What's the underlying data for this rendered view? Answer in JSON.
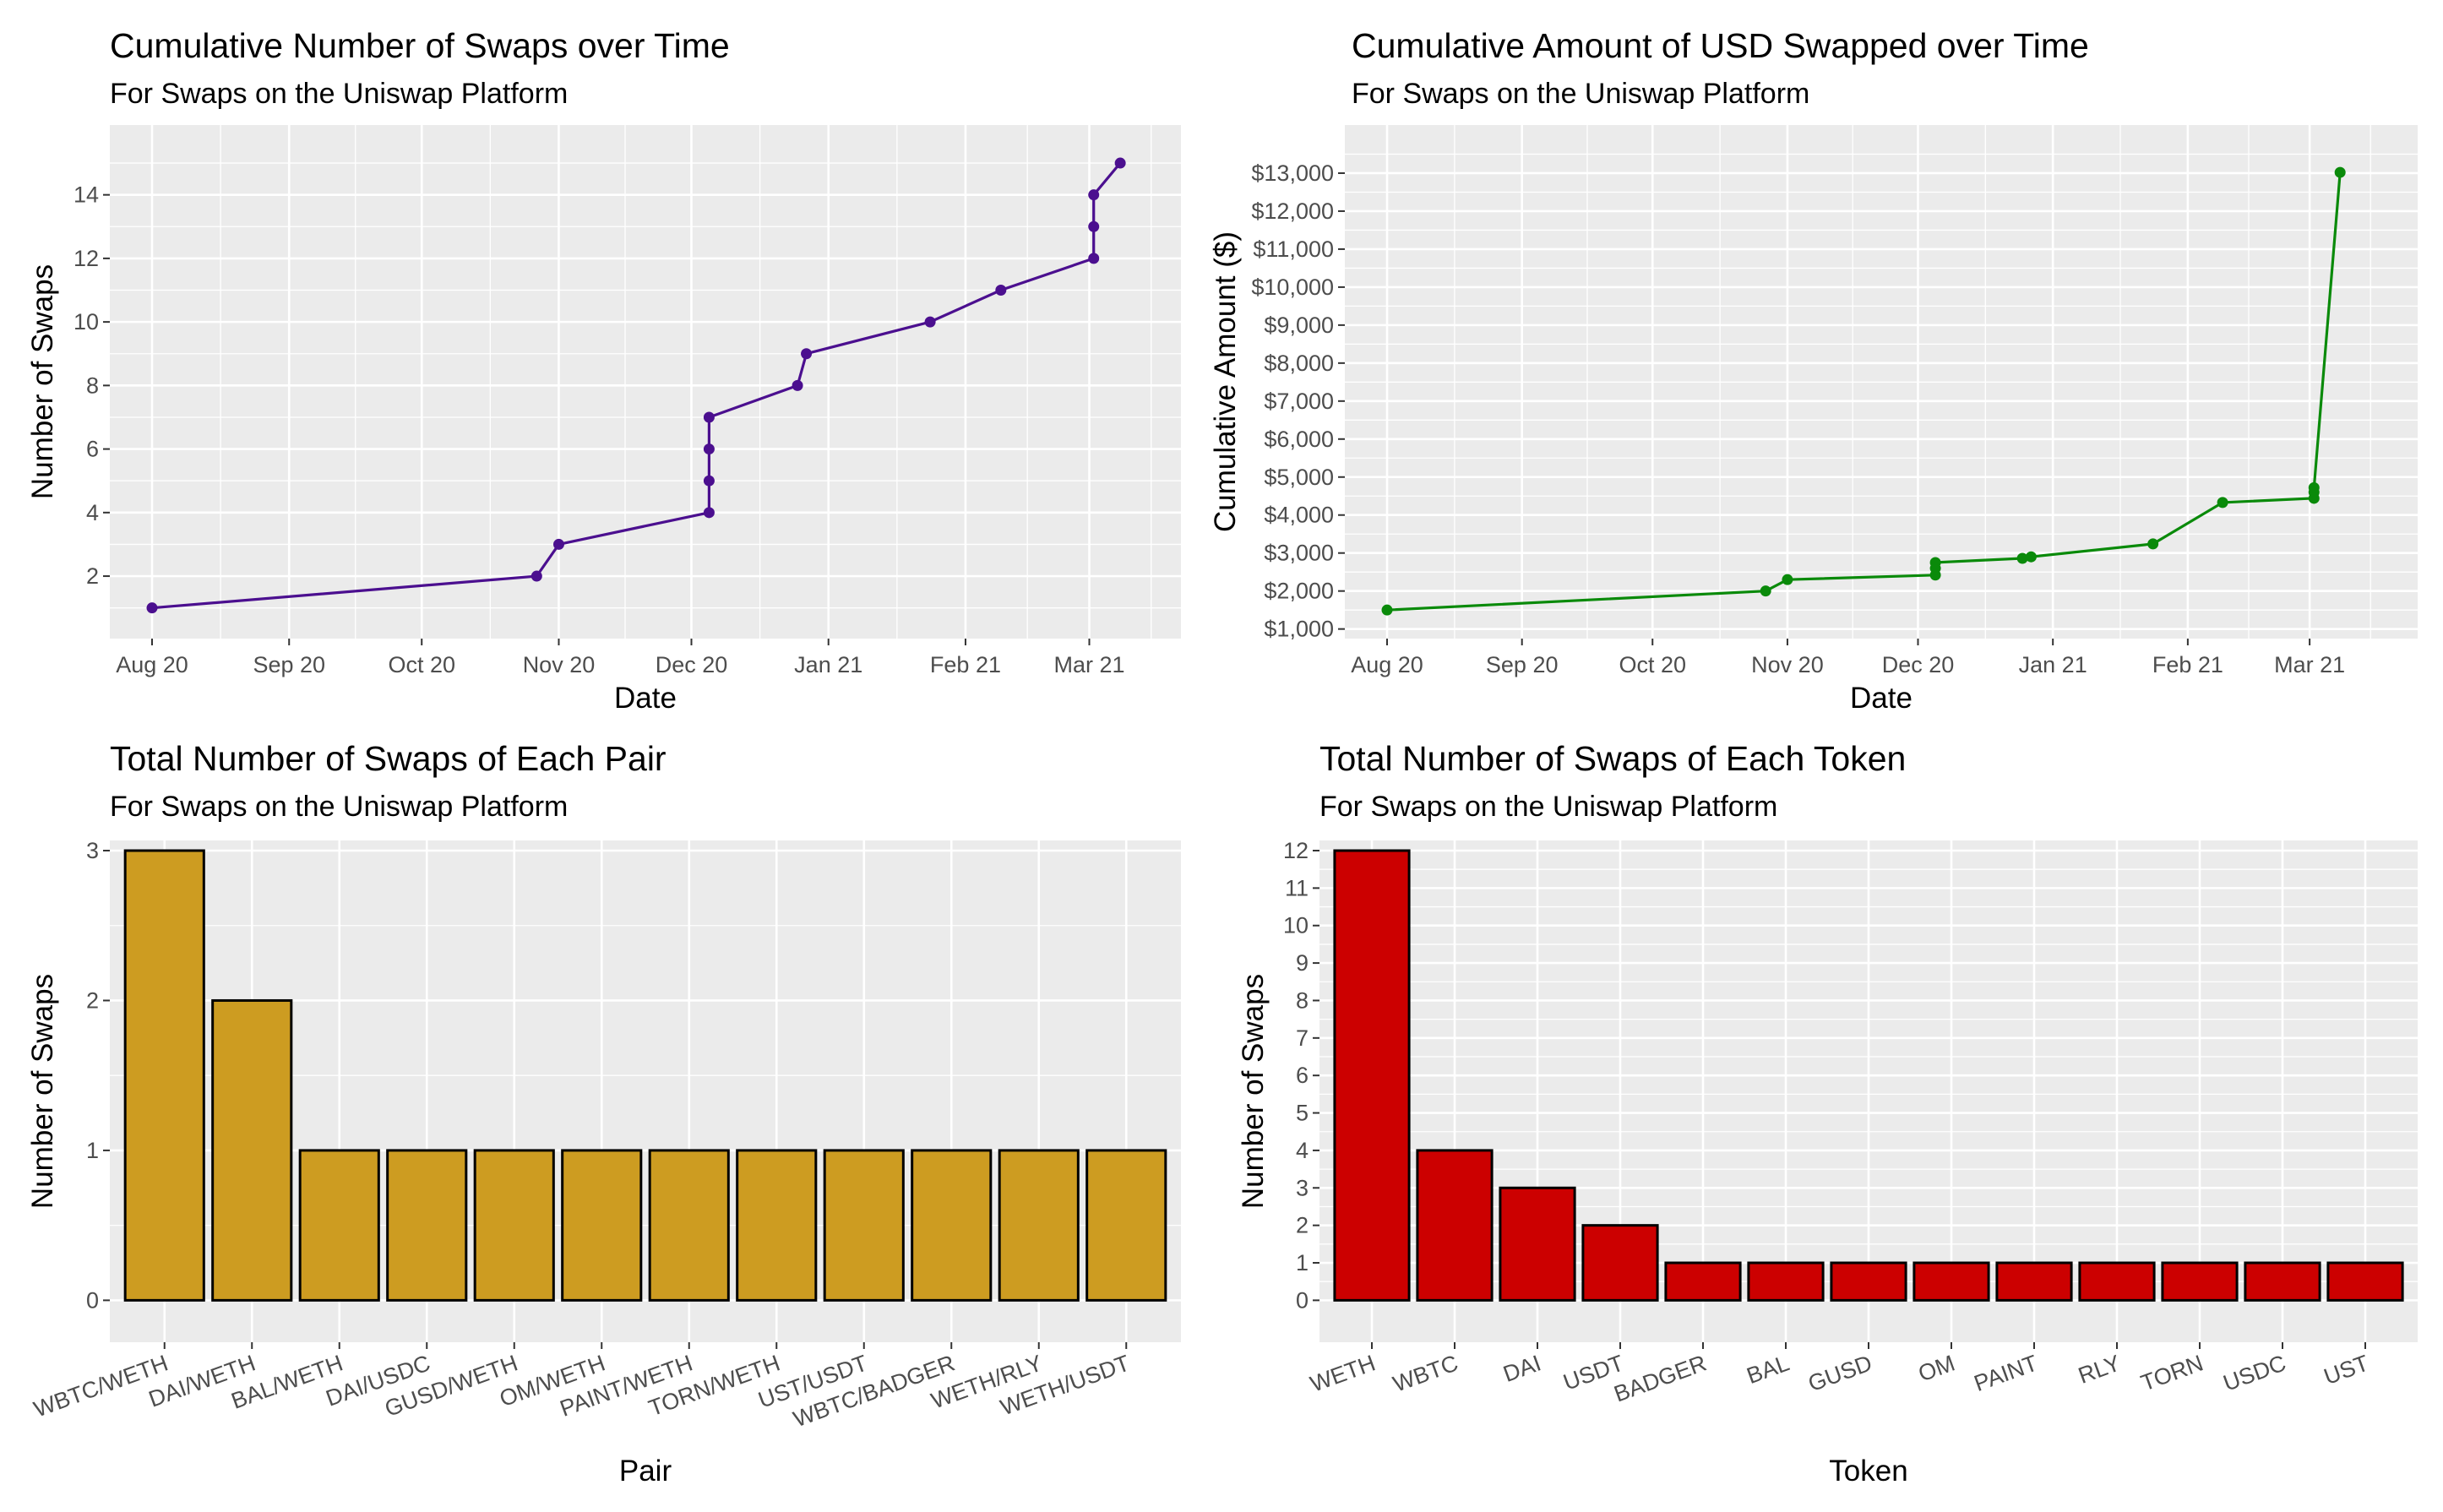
{
  "chart_data": [
    {
      "type": "line",
      "title": "Cumulative Number of Swaps over Time",
      "subtitle": "For Swaps on the Uniswap Platform",
      "xlabel": "Date",
      "ylabel": "Number of Swaps",
      "xlim": [
        "2020-08-01",
        "2021-03-16"
      ],
      "ylim": [
        0.3,
        15.4
      ],
      "x_ticks": [
        {
          "date": "2020-08-01",
          "label": "Aug 20"
        },
        {
          "date": "2020-09-01",
          "label": "Sep 20"
        },
        {
          "date": "2020-10-01",
          "label": "Oct 20"
        },
        {
          "date": "2020-11-01",
          "label": "Nov 20"
        },
        {
          "date": "2020-12-01",
          "label": "Dec 20"
        },
        {
          "date": "2021-01-01",
          "label": "Jan 21"
        },
        {
          "date": "2021-02-01",
          "label": "Feb 21"
        },
        {
          "date": "2021-03-01",
          "label": "Mar 21"
        }
      ],
      "y_ticks": [
        {
          "value": 2,
          "label": "2"
        },
        {
          "value": 4,
          "label": "4"
        },
        {
          "value": 6,
          "label": "6"
        },
        {
          "value": 8,
          "label": "8"
        },
        {
          "value": 10,
          "label": "10"
        },
        {
          "value": 12,
          "label": "12"
        },
        {
          "value": 14,
          "label": "14"
        }
      ],
      "color": "#4b0f8f",
      "grid": true,
      "series": [
        {
          "x": [
            "2020-08-01",
            "2020-10-27",
            "2020-11-01",
            "2020-12-05",
            "2020-12-05",
            "2020-12-05",
            "2020-12-05",
            "2020-12-25",
            "2020-12-27",
            "2021-01-24",
            "2021-02-09",
            "2021-03-02",
            "2021-03-02",
            "2021-03-02",
            "2021-03-08"
          ],
          "y": [
            1,
            2,
            3,
            4,
            5,
            6,
            7,
            8,
            9,
            10,
            11,
            12,
            13,
            14,
            15
          ]
        }
      ]
    },
    {
      "type": "line",
      "title": "Cumulative Amount of USD Swapped over Time",
      "subtitle": "For Swaps on the Uniswap Platform",
      "xlabel": "Date",
      "ylabel": "Cumulative Amount ($)",
      "xlim": [
        "2020-08-01",
        "2021-03-20"
      ],
      "ylim": [
        970,
        13600
      ],
      "x_ticks": [
        {
          "date": "2020-08-01",
          "label": "Aug 20"
        },
        {
          "date": "2020-09-01",
          "label": "Sep 20"
        },
        {
          "date": "2020-10-01",
          "label": "Oct 20"
        },
        {
          "date": "2020-11-01",
          "label": "Nov 20"
        },
        {
          "date": "2020-12-01",
          "label": "Dec 20"
        },
        {
          "date": "2021-01-01",
          "label": "Jan 21"
        },
        {
          "date": "2021-02-01",
          "label": "Feb 21"
        },
        {
          "date": "2021-03-01",
          "label": "Mar 21"
        }
      ],
      "y_ticks": [
        {
          "value": 1000,
          "label": "$1,000"
        },
        {
          "value": 2000,
          "label": "$2,000"
        },
        {
          "value": 3000,
          "label": "$3,000"
        },
        {
          "value": 4000,
          "label": "$4,000"
        },
        {
          "value": 5000,
          "label": "$5,000"
        },
        {
          "value": 6000,
          "label": "$6,000"
        },
        {
          "value": 7000,
          "label": "$7,000"
        },
        {
          "value": 8000,
          "label": "$8,000"
        },
        {
          "value": 9000,
          "label": "$9,000"
        },
        {
          "value": 10000,
          "label": "$10,000"
        },
        {
          "value": 11000,
          "label": "$11,000"
        },
        {
          "value": 12000,
          "label": "$12,000"
        },
        {
          "value": 13000,
          "label": "$13,000"
        }
      ],
      "color": "#0a8a0a",
      "grid": true,
      "series": [
        {
          "x": [
            "2020-08-01",
            "2020-10-27",
            "2020-11-01",
            "2020-12-05",
            "2020-12-05",
            "2020-12-05",
            "2020-12-25",
            "2020-12-27",
            "2021-01-24",
            "2021-02-09",
            "2021-03-02",
            "2021-03-02",
            "2021-03-02",
            "2021-03-08"
          ],
          "y": [
            1500,
            2000,
            2300,
            2420,
            2600,
            2750,
            2860,
            2900,
            3240,
            4330,
            4440,
            4600,
            4720,
            13020
          ]
        }
      ]
    },
    {
      "type": "bar",
      "title": "Total Number of Swaps of Each Pair",
      "subtitle": "For Swaps on the Uniswap Platform",
      "xlabel": "Pair",
      "ylabel": "Number of Swaps",
      "ylim": [
        -0.15,
        3.0
      ],
      "y_ticks": [
        0,
        1,
        2,
        3
      ],
      "color": "#cd9c21",
      "grid": true,
      "categories": [
        "WBTC/WETH",
        "DAI/WETH",
        "BAL/WETH",
        "DAI/USDC",
        "GUSD/WETH",
        "OM/WETH",
        "PAINT/WETH",
        "TORN/WETH",
        "UST/USDT",
        "WBTC/BADGER",
        "WETH/RLY",
        "WETH/USDT"
      ],
      "values": [
        3,
        2,
        1,
        1,
        1,
        1,
        1,
        1,
        1,
        1,
        1,
        1
      ]
    },
    {
      "type": "bar",
      "title": "Total Number of Swaps of Each Token",
      "subtitle": "For Swaps on the Uniswap Platform",
      "xlabel": "Token",
      "ylabel": "Number of Swaps",
      "ylim": [
        -0.6,
        12.0
      ],
      "y_ticks": [
        0,
        1,
        2,
        3,
        4,
        5,
        6,
        7,
        8,
        9,
        10,
        11,
        12
      ],
      "color": "#cc0000",
      "grid": true,
      "categories": [
        "WETH",
        "WBTC",
        "DAI",
        "USDT",
        "BADGER",
        "BAL",
        "GUSD",
        "OM",
        "PAINT",
        "RLY",
        "TORN",
        "USDC",
        "UST"
      ],
      "values": [
        12,
        4,
        3,
        2,
        1,
        1,
        1,
        1,
        1,
        1,
        1,
        1,
        1
      ]
    }
  ]
}
